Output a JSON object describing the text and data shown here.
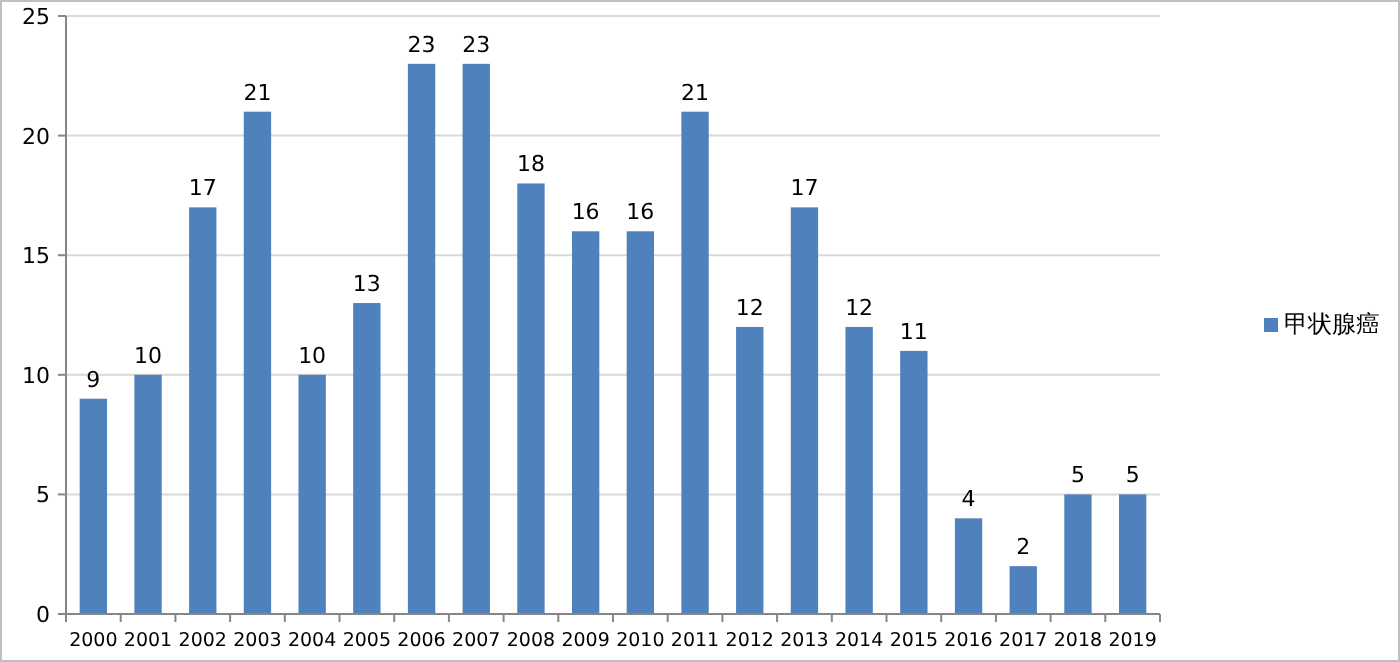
{
  "chart_data": {
    "type": "bar",
    "categories": [
      "2000",
      "2001",
      "2002",
      "2003",
      "2004",
      "2005",
      "2006",
      "2007",
      "2008",
      "2009",
      "2010",
      "2011",
      "2012",
      "2013",
      "2014",
      "2015",
      "2016",
      "2017",
      "2018",
      "2019"
    ],
    "series": [
      {
        "name": "甲状腺癌",
        "color": "#4f81bd",
        "values": [
          9,
          10,
          17,
          21,
          10,
          13,
          23,
          23,
          18,
          16,
          16,
          21,
          12,
          17,
          12,
          11,
          4,
          2,
          5,
          5
        ]
      }
    ],
    "ylim": [
      0,
      25
    ],
    "yticks": [
      0,
      5,
      10,
      15,
      20,
      25
    ],
    "grid": "y",
    "legend": "right",
    "data_labels": true
  }
}
